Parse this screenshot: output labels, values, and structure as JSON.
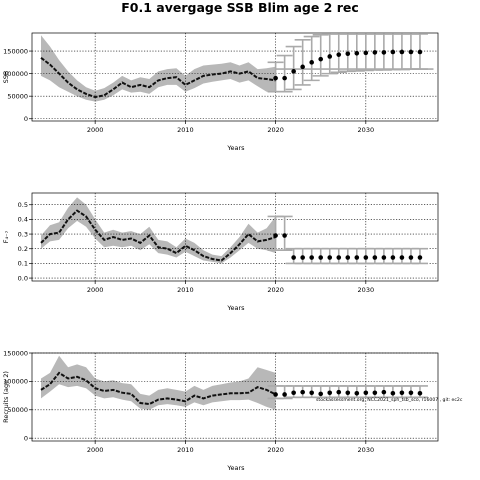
{
  "title": "F0.1 avergage SSB Blim age 2 rec",
  "colors": {
    "band": "#b8b8b8",
    "median": "#111111",
    "point": "#000000",
    "interval": "#aaaaaa",
    "grid": "#000000"
  },
  "chart_data": [
    {
      "type": "line",
      "ylabel": "SSB",
      "xlabel": "Years",
      "xlim": [
        1993,
        2038
      ],
      "xticks": [
        2000,
        2010,
        2020,
        2030
      ],
      "ylim": [
        -5000,
        190000
      ],
      "yticks": [
        0,
        50000,
        100000,
        150000
      ],
      "ytick_labels": [
        "0",
        "50000",
        "100000",
        "150000"
      ],
      "hist": {
        "x": [
          1994,
          1995,
          1996,
          1997,
          1998,
          1999,
          2000,
          2001,
          2002,
          2003,
          2004,
          2005,
          2006,
          2007,
          2008,
          2009,
          2010,
          2011,
          2012,
          2013,
          2014,
          2015,
          2016,
          2017,
          2018,
          2019,
          2020
        ],
        "median": [
          135000,
          120000,
          100000,
          80000,
          65000,
          55000,
          48000,
          52000,
          65000,
          80000,
          70000,
          75000,
          70000,
          85000,
          90000,
          92000,
          75000,
          85000,
          95000,
          98000,
          100000,
          105000,
          100000,
          105000,
          90000,
          88000,
          85000
        ],
        "lower": [
          95000,
          85000,
          70000,
          60000,
          50000,
          42000,
          38000,
          42000,
          52000,
          65000,
          58000,
          60000,
          55000,
          70000,
          75000,
          75000,
          60000,
          68000,
          78000,
          82000,
          85000,
          88000,
          80000,
          85000,
          72000,
          60000,
          58000
        ],
        "upper": [
          185000,
          160000,
          130000,
          105000,
          85000,
          70000,
          62000,
          68000,
          80000,
          95000,
          85000,
          92000,
          88000,
          105000,
          110000,
          112000,
          95000,
          110000,
          118000,
          120000,
          122000,
          125000,
          118000,
          125000,
          110000,
          112000,
          115000
        ]
      },
      "proj": {
        "x": [
          2020,
          2021,
          2022,
          2023,
          2024,
          2025,
          2026,
          2027,
          2028,
          2029,
          2030,
          2031,
          2032,
          2033,
          2034,
          2035,
          2036
        ],
        "median": [
          90000,
          90000,
          105000,
          115000,
          125000,
          132000,
          138000,
          142000,
          144000,
          145000,
          146000,
          147000,
          147000,
          148000,
          148000,
          148000,
          148000
        ],
        "lower": [
          60000,
          60000,
          65000,
          75000,
          85000,
          95000,
          100000,
          103000,
          105000,
          106000,
          107000,
          108000,
          108000,
          109000,
          109000,
          110000,
          110000
        ],
        "upper": [
          125000,
          140000,
          160000,
          175000,
          182000,
          186000,
          188000,
          188000,
          188000,
          188000,
          188000,
          188000,
          188000,
          188000,
          188000,
          188000,
          188000
        ]
      },
      "refline": 110000
    },
    {
      "type": "line",
      "ylabel": "F₄₋₇",
      "xlabel": "Years",
      "xlim": [
        1993,
        2038
      ],
      "xticks": [
        2000,
        2010,
        2020,
        2030
      ],
      "ylim": [
        -0.02,
        0.58
      ],
      "yticks": [
        0.0,
        0.1,
        0.2,
        0.3,
        0.4,
        0.5
      ],
      "ytick_labels": [
        "0.0",
        "0.1",
        "0.2",
        "0.3",
        "0.4",
        "0.5"
      ],
      "hist": {
        "x": [
          1994,
          1995,
          1996,
          1997,
          1998,
          1999,
          2000,
          2001,
          2002,
          2003,
          2004,
          2005,
          2006,
          2007,
          2008,
          2009,
          2010,
          2011,
          2012,
          2013,
          2014,
          2015,
          2016,
          2017,
          2018,
          2019,
          2020
        ],
        "median": [
          0.24,
          0.3,
          0.31,
          0.4,
          0.46,
          0.42,
          0.33,
          0.26,
          0.28,
          0.26,
          0.27,
          0.24,
          0.29,
          0.21,
          0.2,
          0.17,
          0.22,
          0.19,
          0.15,
          0.13,
          0.12,
          0.17,
          0.23,
          0.3,
          0.25,
          0.26,
          0.28
        ],
        "lower": [
          0.2,
          0.25,
          0.26,
          0.34,
          0.39,
          0.35,
          0.27,
          0.21,
          0.22,
          0.21,
          0.22,
          0.19,
          0.23,
          0.17,
          0.16,
          0.14,
          0.18,
          0.15,
          0.12,
          0.11,
          0.1,
          0.14,
          0.19,
          0.24,
          0.2,
          0.19,
          0.17
        ],
        "upper": [
          0.29,
          0.36,
          0.38,
          0.48,
          0.55,
          0.5,
          0.4,
          0.31,
          0.33,
          0.31,
          0.32,
          0.3,
          0.35,
          0.26,
          0.25,
          0.21,
          0.27,
          0.24,
          0.19,
          0.16,
          0.15,
          0.21,
          0.28,
          0.37,
          0.31,
          0.34,
          0.42
        ]
      },
      "proj": {
        "x": [
          2020,
          2021,
          2022,
          2023,
          2024,
          2025,
          2026,
          2027,
          2028,
          2029,
          2030,
          2031,
          2032,
          2033,
          2034,
          2035,
          2036
        ],
        "median": [
          0.29,
          0.29,
          0.14,
          0.14,
          0.14,
          0.14,
          0.14,
          0.14,
          0.14,
          0.14,
          0.14,
          0.14,
          0.14,
          0.14,
          0.14,
          0.14,
          0.14
        ],
        "lower": [
          0.19,
          0.19,
          0.1,
          0.1,
          0.1,
          0.1,
          0.1,
          0.1,
          0.1,
          0.1,
          0.1,
          0.1,
          0.1,
          0.1,
          0.1,
          0.1,
          0.1
        ],
        "upper": [
          0.42,
          0.42,
          0.2,
          0.2,
          0.2,
          0.2,
          0.2,
          0.2,
          0.2,
          0.2,
          0.2,
          0.2,
          0.2,
          0.2,
          0.2,
          0.2,
          0.2
        ]
      },
      "refline": null
    },
    {
      "type": "line",
      "ylabel": "Recruits (age 2)",
      "xlabel": "Years",
      "xlim": [
        1993,
        2038
      ],
      "xticks": [
        2000,
        2010,
        2020,
        2030
      ],
      "ylim": [
        -5000,
        150000
      ],
      "yticks": [
        0,
        50000,
        100000,
        150000
      ],
      "ytick_labels": [
        "0",
        "50000",
        "100000",
        "150000"
      ],
      "hist": {
        "x": [
          1994,
          1995,
          1996,
          1997,
          1998,
          1999,
          2000,
          2001,
          2002,
          2003,
          2004,
          2005,
          2006,
          2007,
          2008,
          2009,
          2010,
          2011,
          2012,
          2013,
          2014,
          2015,
          2016,
          2017,
          2018,
          2019,
          2020
        ],
        "median": [
          85000,
          95000,
          115000,
          105000,
          108000,
          102000,
          88000,
          83000,
          85000,
          80000,
          78000,
          62000,
          60000,
          68000,
          70000,
          68000,
          65000,
          75000,
          70000,
          75000,
          77000,
          79000,
          79000,
          80000,
          90000,
          85000,
          77000
        ],
        "lower": [
          70000,
          82000,
          95000,
          90000,
          92000,
          88000,
          75000,
          70000,
          72000,
          68000,
          65000,
          52000,
          50000,
          58000,
          60000,
          58000,
          55000,
          63000,
          58000,
          63000,
          65000,
          67000,
          67000,
          68000,
          62000,
          55000,
          50000
        ],
        "upper": [
          105000,
          115000,
          145000,
          125000,
          130000,
          125000,
          105000,
          100000,
          102000,
          97000,
          95000,
          78000,
          75000,
          85000,
          88000,
          85000,
          82000,
          92000,
          85000,
          92000,
          95000,
          98000,
          100000,
          105000,
          125000,
          120000,
          115000
        ]
      },
      "proj": {
        "x": [
          2020,
          2021,
          2022,
          2023,
          2024,
          2025,
          2026,
          2027,
          2028,
          2029,
          2030,
          2031,
          2032,
          2033,
          2034,
          2035,
          2036
        ],
        "median": [
          77000,
          77000,
          80000,
          81000,
          80000,
          78000,
          80000,
          81000,
          80000,
          79000,
          80000,
          80000,
          81000,
          79000,
          80000,
          80000,
          79000
        ],
        "lower": [
          70000,
          70000,
          72000,
          72000,
          72000,
          72000,
          72000,
          72000,
          72000,
          72000,
          72000,
          72000,
          72000,
          72000,
          72000,
          72000,
          72000
        ],
        "upper": [
          92000,
          92000,
          92000,
          92000,
          92000,
          92000,
          92000,
          92000,
          92000,
          92000,
          92000,
          92000,
          92000,
          92000,
          92000,
          92000,
          92000
        ]
      },
      "refline": null,
      "annotation": "stockassessment.org, NCC2021_sph_tsb_sco, r16007 , git: ec2c"
    }
  ]
}
